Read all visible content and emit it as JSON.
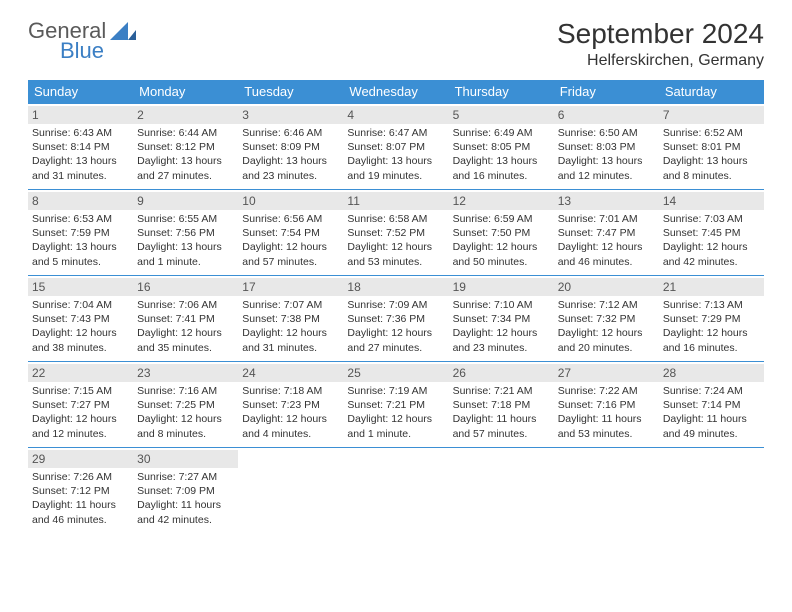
{
  "logo": {
    "text1": "General",
    "text2": "Blue"
  },
  "title": "September 2024",
  "location": "Helferskirchen, Germany",
  "weekdays": [
    "Sunday",
    "Monday",
    "Tuesday",
    "Wednesday",
    "Thursday",
    "Friday",
    "Saturday"
  ],
  "colors": {
    "header_bg": "#3b8fd4",
    "header_text": "#ffffff",
    "daynum_bg": "#e8e8e8",
    "border": "#3b8fd4",
    "logo_gray": "#5a5a5a",
    "logo_blue": "#3b7fc4"
  },
  "weeks": [
    [
      {
        "n": "1",
        "sr": "6:43 AM",
        "ss": "8:14 PM",
        "dl": "13 hours and 31 minutes."
      },
      {
        "n": "2",
        "sr": "6:44 AM",
        "ss": "8:12 PM",
        "dl": "13 hours and 27 minutes."
      },
      {
        "n": "3",
        "sr": "6:46 AM",
        "ss": "8:09 PM",
        "dl": "13 hours and 23 minutes."
      },
      {
        "n": "4",
        "sr": "6:47 AM",
        "ss": "8:07 PM",
        "dl": "13 hours and 19 minutes."
      },
      {
        "n": "5",
        "sr": "6:49 AM",
        "ss": "8:05 PM",
        "dl": "13 hours and 16 minutes."
      },
      {
        "n": "6",
        "sr": "6:50 AM",
        "ss": "8:03 PM",
        "dl": "13 hours and 12 minutes."
      },
      {
        "n": "7",
        "sr": "6:52 AM",
        "ss": "8:01 PM",
        "dl": "13 hours and 8 minutes."
      }
    ],
    [
      {
        "n": "8",
        "sr": "6:53 AM",
        "ss": "7:59 PM",
        "dl": "13 hours and 5 minutes."
      },
      {
        "n": "9",
        "sr": "6:55 AM",
        "ss": "7:56 PM",
        "dl": "13 hours and 1 minute."
      },
      {
        "n": "10",
        "sr": "6:56 AM",
        "ss": "7:54 PM",
        "dl": "12 hours and 57 minutes."
      },
      {
        "n": "11",
        "sr": "6:58 AM",
        "ss": "7:52 PM",
        "dl": "12 hours and 53 minutes."
      },
      {
        "n": "12",
        "sr": "6:59 AM",
        "ss": "7:50 PM",
        "dl": "12 hours and 50 minutes."
      },
      {
        "n": "13",
        "sr": "7:01 AM",
        "ss": "7:47 PM",
        "dl": "12 hours and 46 minutes."
      },
      {
        "n": "14",
        "sr": "7:03 AM",
        "ss": "7:45 PM",
        "dl": "12 hours and 42 minutes."
      }
    ],
    [
      {
        "n": "15",
        "sr": "7:04 AM",
        "ss": "7:43 PM",
        "dl": "12 hours and 38 minutes."
      },
      {
        "n": "16",
        "sr": "7:06 AM",
        "ss": "7:41 PM",
        "dl": "12 hours and 35 minutes."
      },
      {
        "n": "17",
        "sr": "7:07 AM",
        "ss": "7:38 PM",
        "dl": "12 hours and 31 minutes."
      },
      {
        "n": "18",
        "sr": "7:09 AM",
        "ss": "7:36 PM",
        "dl": "12 hours and 27 minutes."
      },
      {
        "n": "19",
        "sr": "7:10 AM",
        "ss": "7:34 PM",
        "dl": "12 hours and 23 minutes."
      },
      {
        "n": "20",
        "sr": "7:12 AM",
        "ss": "7:32 PM",
        "dl": "12 hours and 20 minutes."
      },
      {
        "n": "21",
        "sr": "7:13 AM",
        "ss": "7:29 PM",
        "dl": "12 hours and 16 minutes."
      }
    ],
    [
      {
        "n": "22",
        "sr": "7:15 AM",
        "ss": "7:27 PM",
        "dl": "12 hours and 12 minutes."
      },
      {
        "n": "23",
        "sr": "7:16 AM",
        "ss": "7:25 PM",
        "dl": "12 hours and 8 minutes."
      },
      {
        "n": "24",
        "sr": "7:18 AM",
        "ss": "7:23 PM",
        "dl": "12 hours and 4 minutes."
      },
      {
        "n": "25",
        "sr": "7:19 AM",
        "ss": "7:21 PM",
        "dl": "12 hours and 1 minute."
      },
      {
        "n": "26",
        "sr": "7:21 AM",
        "ss": "7:18 PM",
        "dl": "11 hours and 57 minutes."
      },
      {
        "n": "27",
        "sr": "7:22 AM",
        "ss": "7:16 PM",
        "dl": "11 hours and 53 minutes."
      },
      {
        "n": "28",
        "sr": "7:24 AM",
        "ss": "7:14 PM",
        "dl": "11 hours and 49 minutes."
      }
    ],
    [
      {
        "n": "29",
        "sr": "7:26 AM",
        "ss": "7:12 PM",
        "dl": "11 hours and 46 minutes."
      },
      {
        "n": "30",
        "sr": "7:27 AM",
        "ss": "7:09 PM",
        "dl": "11 hours and 42 minutes."
      },
      null,
      null,
      null,
      null,
      null
    ]
  ],
  "labels": {
    "sunrise": "Sunrise:",
    "sunset": "Sunset:",
    "daylight": "Daylight:"
  }
}
